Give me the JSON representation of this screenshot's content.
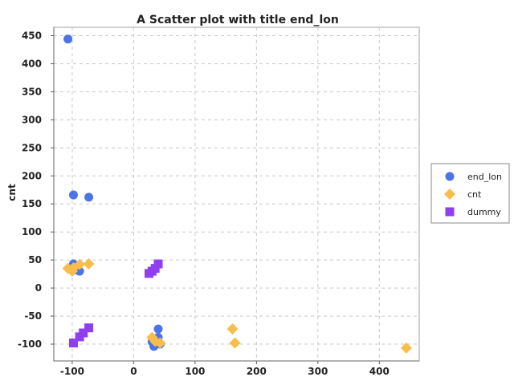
{
  "chart_data": {
    "type": "scatter",
    "title": "A Scatter plot with title end_lon",
    "xlabel": "",
    "ylabel": "cnt",
    "xlim": [
      -130,
      465
    ],
    "ylim": [
      -130,
      465
    ],
    "x_ticks": [
      -100,
      0,
      100,
      200,
      300,
      400
    ],
    "y_ticks": [
      -100,
      -50,
      0,
      50,
      100,
      150,
      200,
      250,
      300,
      350,
      400,
      450
    ],
    "grid": true,
    "legend_position": "right",
    "series": [
      {
        "name": "end_lon",
        "marker": "circle",
        "color": "#4a74e8",
        "points": [
          [
            -107,
            444
          ],
          [
            -98,
            166
          ],
          [
            -73,
            162
          ],
          [
            -98,
            43
          ],
          [
            -96,
            36
          ],
          [
            -92,
            32
          ],
          [
            -88,
            30
          ],
          [
            40,
            -73
          ],
          [
            40,
            -88
          ],
          [
            35,
            -97
          ],
          [
            33,
            -104
          ],
          [
            30,
            -96
          ],
          [
            43,
            -100
          ]
        ]
      },
      {
        "name": "cnt",
        "marker": "diamond",
        "color": "#f8be4c",
        "points": [
          [
            -107,
            35
          ],
          [
            -100,
            30
          ],
          [
            -98,
            36
          ],
          [
            -88,
            42
          ],
          [
            -73,
            43
          ],
          [
            30,
            -88
          ],
          [
            35,
            -95
          ],
          [
            43,
            -98
          ],
          [
            161,
            -73
          ],
          [
            165,
            -98
          ],
          [
            444,
            -107
          ]
        ]
      },
      {
        "name": "dummy",
        "marker": "square",
        "color": "#8f3ef0",
        "points": [
          [
            -98,
            -98
          ],
          [
            -88,
            -87
          ],
          [
            -82,
            -80
          ],
          [
            -73,
            -71
          ],
          [
            25,
            26
          ],
          [
            30,
            30
          ],
          [
            35,
            35
          ],
          [
            40,
            43
          ]
        ]
      }
    ]
  }
}
